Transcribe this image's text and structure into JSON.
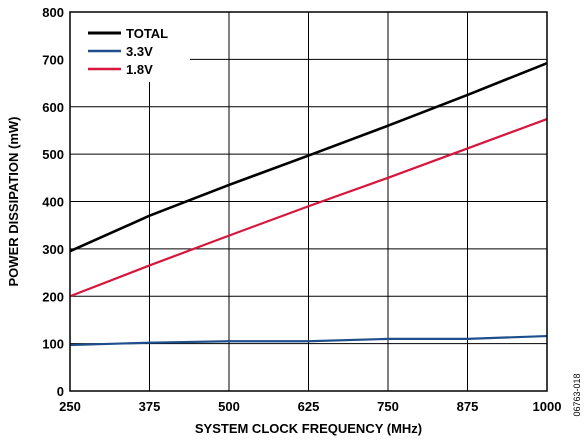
{
  "chart_data": {
    "type": "line",
    "xlabel": "SYSTEM CLOCK FREQUENCY (MHz)",
    "ylabel": "POWER DISSIPATION (mW)",
    "xlim": [
      250,
      1000
    ],
    "ylim": [
      0,
      800
    ],
    "xticks": [
      250,
      375,
      500,
      625,
      750,
      875,
      1000
    ],
    "yticks": [
      0,
      100,
      200,
      300,
      400,
      500,
      600,
      700,
      800
    ],
    "grid": true,
    "legend_position": "top-left",
    "figure_code": "06763-018",
    "series": [
      {
        "name": "TOTAL",
        "color": "#000000",
        "x": [
          250,
          375,
          500,
          625,
          750,
          875,
          1000
        ],
        "y": [
          295,
          370,
          435,
          497,
          560,
          625,
          692
        ]
      },
      {
        "name": "3.3V",
        "color": "#1f4e8c",
        "x": [
          250,
          375,
          500,
          625,
          750,
          875,
          1000
        ],
        "y": [
          97,
          102,
          105,
          105,
          110,
          110,
          116
        ]
      },
      {
        "name": "1.8V",
        "color": "#d6163c",
        "x": [
          250,
          375,
          500,
          625,
          750,
          875,
          1000
        ],
        "y": [
          200,
          265,
          328,
          390,
          450,
          512,
          574
        ]
      }
    ]
  }
}
